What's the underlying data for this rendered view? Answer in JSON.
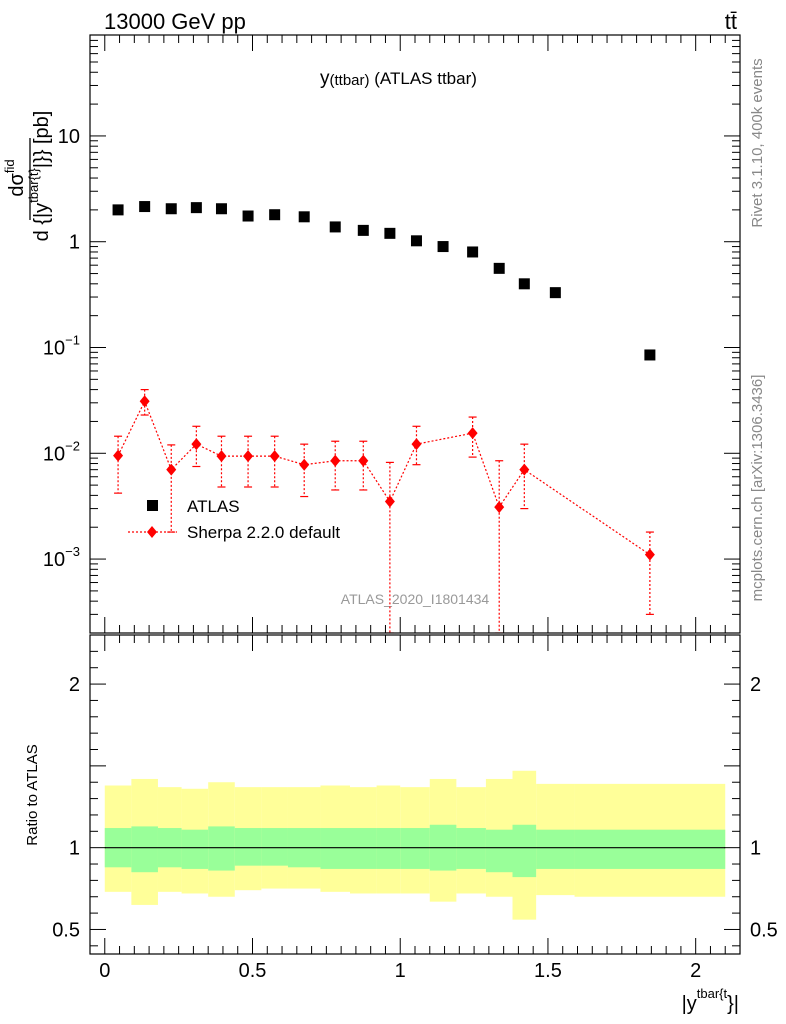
{
  "header": {
    "energy_label": "13000 GeV pp",
    "process_label": "tt̄"
  },
  "side_labels": {
    "rivet": "Rivet 3.1.10,  400k events",
    "mcplots": "mcplots.cern.ch [arXiv:1306.3436]"
  },
  "chart_data": [
    {
      "type": "scatter",
      "title_main": "y",
      "title_sub": "(ttbar)",
      "title_rest": " (ATLAS ttbar)",
      "ylabel": "d σ^{fid} / d {|y^{tbar{t}}|} [pb]",
      "ylabel_parts": {
        "d_top": "d",
        "sigma": "σ",
        "sigma_sup": "fid",
        "d_bottom": "d {|y",
        "y_sup": "tbar{t}",
        "tail": "|}} [pb]"
      },
      "xlim": [
        -0.05,
        2.15
      ],
      "ylim": [
        0.0002,
        90
      ],
      "log_y": true,
      "y_ticks": [
        {
          "value": 0.001,
          "base": "10",
          "exp": "−3"
        },
        {
          "value": 0.01,
          "base": "10",
          "exp": "−2"
        },
        {
          "value": 0.1,
          "base": "10",
          "exp": "−1"
        },
        {
          "value": 1,
          "base": "1",
          "exp": ""
        },
        {
          "value": 10,
          "base": "10",
          "exp": ""
        }
      ],
      "watermark": "ATLAS_2020_I1801434",
      "legend_position": "bottom-left",
      "series": [
        {
          "name": "ATLAS",
          "color": "#000000",
          "marker": "square",
          "x": [
            0.045,
            0.135,
            0.225,
            0.31,
            0.395,
            0.485,
            0.575,
            0.675,
            0.78,
            0.875,
            0.965,
            1.055,
            1.145,
            1.245,
            1.335,
            1.42,
            1.525,
            1.845
          ],
          "y": [
            2.0,
            2.15,
            2.05,
            2.1,
            2.05,
            1.75,
            1.8,
            1.72,
            1.38,
            1.28,
            1.2,
            1.02,
            0.9,
            0.8,
            0.56,
            0.4,
            0.33,
            0.085
          ]
        },
        {
          "name": "Sherpa 2.2.0 default",
          "color": "#ff0000",
          "marker": "diamond",
          "x": [
            0.045,
            0.135,
            0.225,
            0.31,
            0.395,
            0.485,
            0.575,
            0.675,
            0.78,
            0.875,
            0.965,
            1.055,
            1.245,
            1.335,
            1.42,
            1.845
          ],
          "y": [
            0.0095,
            0.031,
            0.007,
            0.0122,
            0.0094,
            0.0094,
            0.0094,
            0.0078,
            0.0085,
            0.0085,
            0.0035,
            0.0122,
            0.0155,
            0.0031,
            0.007,
            0.0011
          ],
          "y_low": [
            0.0042,
            0.023,
            0.0018,
            0.0075,
            0.0048,
            0.0048,
            0.0048,
            0.0039,
            0.0045,
            0.0045,
            0.0002,
            0.0078,
            0.0092,
            0.0002,
            0.003,
            0.0003
          ],
          "y_high": [
            0.0145,
            0.04,
            0.012,
            0.018,
            0.0145,
            0.0145,
            0.0145,
            0.0122,
            0.013,
            0.013,
            0.0082,
            0.018,
            0.022,
            0.0085,
            0.0122,
            0.0018
          ]
        }
      ]
    },
    {
      "type": "area",
      "ylabel": "Ratio to ATLAS",
      "xlabel_base": "|y",
      "xlabel_sup": "tbar{t",
      "xlabel_tail": "}|",
      "xlim": [
        -0.05,
        2.15
      ],
      "ylim": [
        0.35,
        2.3
      ],
      "x_ticks": [
        {
          "value": 0,
          "label": "0"
        },
        {
          "value": 0.5,
          "label": "0.5"
        },
        {
          "value": 1,
          "label": "1"
        },
        {
          "value": 1.5,
          "label": "1.5"
        },
        {
          "value": 2,
          "label": "2"
        }
      ],
      "y_ticks": [
        {
          "value": 0.5,
          "label": "0.5"
        },
        {
          "value": 1,
          "label": "1"
        },
        {
          "value": 2,
          "label": "2"
        }
      ],
      "reference_line": 1,
      "bin_edges": [
        0,
        0.09,
        0.18,
        0.26,
        0.35,
        0.44,
        0.53,
        0.62,
        0.73,
        0.83,
        0.92,
        1.0,
        1.1,
        1.19,
        1.29,
        1.38,
        1.46,
        1.59,
        2.1
      ],
      "stat_band": {
        "color": "#99ff99",
        "low": [
          0.88,
          0.85,
          0.88,
          0.87,
          0.86,
          0.89,
          0.89,
          0.88,
          0.87,
          0.87,
          0.87,
          0.87,
          0.86,
          0.87,
          0.85,
          0.82,
          0.87,
          0.87
        ],
        "high": [
          1.12,
          1.13,
          1.12,
          1.11,
          1.13,
          1.12,
          1.12,
          1.12,
          1.12,
          1.12,
          1.12,
          1.12,
          1.14,
          1.12,
          1.11,
          1.14,
          1.11,
          1.11
        ]
      },
      "total_band": {
        "color": "#ffff99",
        "low": [
          0.73,
          0.65,
          0.73,
          0.72,
          0.7,
          0.74,
          0.75,
          0.75,
          0.73,
          0.72,
          0.72,
          0.72,
          0.67,
          0.72,
          0.7,
          0.56,
          0.71,
          0.7
        ],
        "high": [
          1.38,
          1.42,
          1.37,
          1.36,
          1.4,
          1.37,
          1.37,
          1.37,
          1.38,
          1.37,
          1.38,
          1.37,
          1.42,
          1.37,
          1.42,
          1.47,
          1.39,
          1.39
        ]
      }
    }
  ]
}
